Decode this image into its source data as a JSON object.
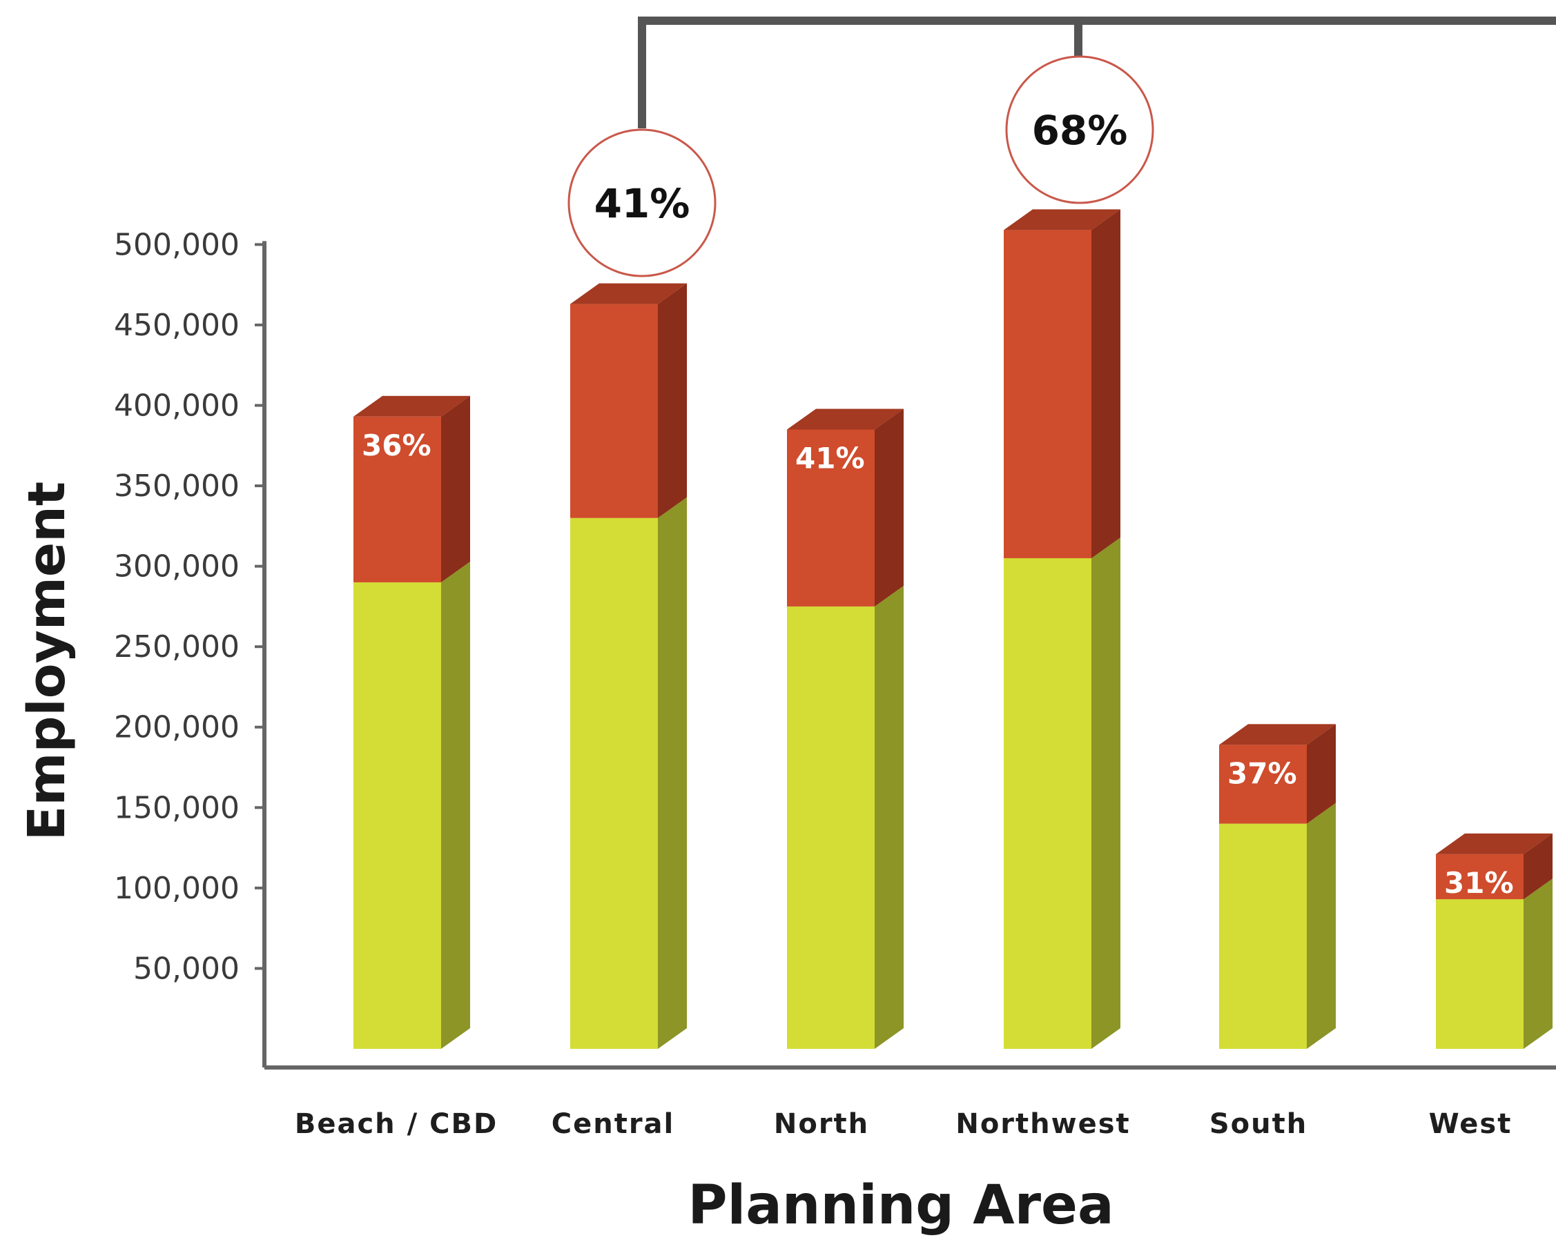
{
  "chart_data": {
    "type": "bar",
    "stacked": true,
    "style": "3d",
    "xlabel": "Planning Area",
    "ylabel": "Employment",
    "categories": [
      "Beach / CBD",
      "Central",
      "North",
      "Northwest",
      "South",
      "West"
    ],
    "series": [
      {
        "values": [
          290000,
          330000,
          275000,
          305000,
          140000,
          93000
        ]
      },
      {
        "values": [
          103000,
          133000,
          110000,
          204000,
          49000,
          28000
        ]
      }
    ],
    "bar_labels": [
      "36%",
      "",
      "41%",
      "",
      "37%",
      "31%"
    ],
    "callouts": [
      {
        "category": "Central",
        "text": "41%"
      },
      {
        "category": "Northwest",
        "text": "68%"
      }
    ],
    "yticks": [
      50000,
      100000,
      150000,
      200000,
      250000,
      300000,
      350000,
      400000,
      450000,
      500000
    ],
    "ytick_labels": [
      "50,000",
      "100,000",
      "150,000",
      "200,000",
      "250,000",
      "300,000",
      "350,000",
      "400,000",
      "450,000",
      "500,000"
    ],
    "ylim": [
      0,
      500000
    ],
    "grid": false,
    "colors": {
      "base_front": "#d3dd35",
      "base_side": "#8c9526",
      "top_front": "#cf4c2c",
      "top_side": "#8a2d1a",
      "top_cap": "#a33a21",
      "axis": "#666666",
      "callout_border": "#c9584a",
      "bracket": "#555555"
    }
  }
}
